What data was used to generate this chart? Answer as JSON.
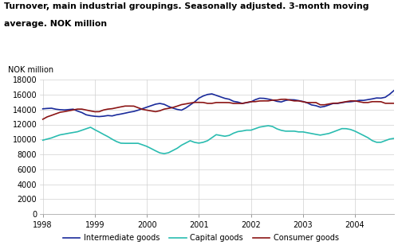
{
  "title_line1": "Turnover, main industrial groupings. Seasonally adjusted. 3-month moving",
  "title_line2": "average. NOK million",
  "ylabel": "NOK million",
  "xlim": [
    1997.95,
    2004.75
  ],
  "ylim": [
    0,
    18000
  ],
  "yticks": [
    0,
    2000,
    4000,
    6000,
    8000,
    10000,
    12000,
    14000,
    16000,
    18000
  ],
  "xticks": [
    1998,
    1999,
    2000,
    2001,
    2002,
    2003,
    2004
  ],
  "colors": {
    "intermediate": "#1a2b9b",
    "capital": "#2abcb0",
    "consumer": "#8b1515"
  },
  "legend": [
    "Intermediate goods",
    "Capital goods",
    "Consumer goods"
  ],
  "intermediate_goods": [
    14100,
    14150,
    14180,
    14050,
    13980,
    13950,
    14000,
    14050,
    13800,
    13600,
    13300,
    13180,
    13100,
    13060,
    13110,
    13200,
    13150,
    13300,
    13400,
    13520,
    13650,
    13750,
    13920,
    14120,
    14320,
    14520,
    14720,
    14820,
    14700,
    14420,
    14200,
    14020,
    13920,
    14220,
    14620,
    15020,
    15520,
    15820,
    16020,
    16100,
    15900,
    15700,
    15500,
    15380,
    15100,
    15000,
    14820,
    14920,
    15020,
    15320,
    15520,
    15500,
    15400,
    15280,
    15100,
    15020,
    15220,
    15320,
    15300,
    15200,
    15080,
    14900,
    14620,
    14520,
    14320,
    14420,
    14620,
    14820,
    14820,
    14920,
    15020,
    15050,
    15120,
    15230,
    15230,
    15330,
    15430,
    15550,
    15530,
    15650,
    16050,
    16550,
    17050,
    17250
  ],
  "capital_goods": [
    9900,
    10050,
    10200,
    10420,
    10620,
    10720,
    10830,
    10930,
    11030,
    11230,
    11430,
    11630,
    11300,
    11000,
    10680,
    10380,
    10030,
    9720,
    9500,
    9480,
    9480,
    9480,
    9480,
    9280,
    9070,
    8780,
    8480,
    8200,
    8100,
    8220,
    8520,
    8820,
    9230,
    9530,
    9830,
    9610,
    9510,
    9620,
    9830,
    10230,
    10640,
    10530,
    10430,
    10540,
    10840,
    11050,
    11130,
    11240,
    11240,
    11440,
    11650,
    11750,
    11840,
    11730,
    11420,
    11220,
    11110,
    11110,
    11110,
    11010,
    11010,
    10900,
    10790,
    10680,
    10580,
    10690,
    10800,
    11010,
    11230,
    11450,
    11440,
    11330,
    11110,
    10820,
    10530,
    10230,
    9840,
    9620,
    9620,
    9840,
    10050,
    10140,
    10230,
    10230
  ],
  "consumer_goods": [
    12700,
    13020,
    13220,
    13430,
    13640,
    13730,
    13840,
    13950,
    14060,
    14060,
    13940,
    13820,
    13710,
    13720,
    13940,
    14060,
    14120,
    14240,
    14360,
    14470,
    14470,
    14460,
    14240,
    14030,
    13920,
    13820,
    13720,
    13840,
    14060,
    14160,
    14280,
    14460,
    14660,
    14760,
    14870,
    14960,
    14960,
    14950,
    14830,
    14830,
    14940,
    14940,
    14940,
    14930,
    14820,
    14820,
    14820,
    14940,
    15060,
    15060,
    15150,
    15160,
    15160,
    15260,
    15270,
    15370,
    15380,
    15270,
    15160,
    15160,
    15050,
    14940,
    14940,
    14940,
    14640,
    14640,
    14750,
    14850,
    14860,
    14960,
    15060,
    15160,
    15160,
    15050,
    14940,
    14940,
    15060,
    15060,
    15050,
    14840,
    14840,
    14840,
    14730,
    14730
  ]
}
